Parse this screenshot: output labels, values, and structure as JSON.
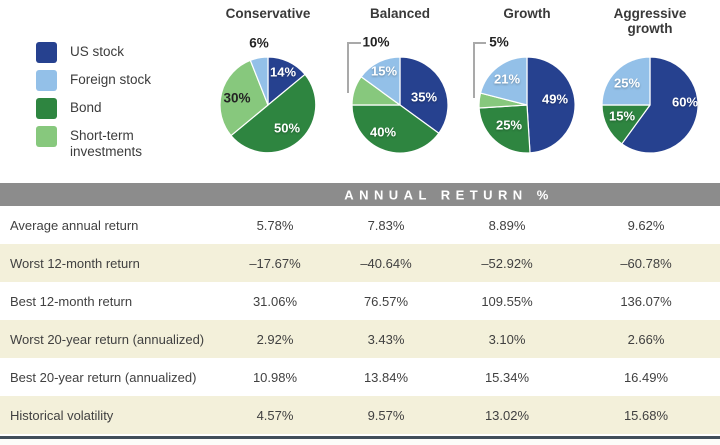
{
  "legend": {
    "items": [
      {
        "key": "us_stock",
        "label": "US stock"
      },
      {
        "key": "foreign_stock",
        "label": "Foreign stock"
      },
      {
        "key": "bond",
        "label": "Bond"
      },
      {
        "key": "short_term",
        "label": "Short-term investments"
      }
    ]
  },
  "colors": {
    "us_stock": "#26418f",
    "foreign_stock": "#93c0e8",
    "bond": "#2e8540",
    "short_term": "#87c87d",
    "header_bar": "#8c8c8c",
    "row_alt": "#f3f0da",
    "bottom_rule": "#414e5a"
  },
  "pies": [
    {
      "title": "Conservative",
      "slices": [
        {
          "key": "us_stock",
          "value": 14,
          "label": "14%"
        },
        {
          "key": "bond",
          "value": 50,
          "label": "50%"
        },
        {
          "key": "short_term",
          "value": 30,
          "label": "30%"
        },
        {
          "key": "foreign_stock",
          "value": 6,
          "label": "6%"
        }
      ]
    },
    {
      "title": "Balanced",
      "slices": [
        {
          "key": "us_stock",
          "value": 35,
          "label": "35%"
        },
        {
          "key": "bond",
          "value": 40,
          "label": "40%"
        },
        {
          "key": "short_term",
          "value": 10,
          "label": "10%"
        },
        {
          "key": "foreign_stock",
          "value": 15,
          "label": "15%"
        }
      ]
    },
    {
      "title": "Growth",
      "slices": [
        {
          "key": "us_stock",
          "value": 49,
          "label": "49%"
        },
        {
          "key": "bond",
          "value": 25,
          "label": "25%"
        },
        {
          "key": "short_term",
          "value": 5,
          "label": "5%"
        },
        {
          "key": "foreign_stock",
          "value": 21,
          "label": "21%"
        }
      ]
    },
    {
      "title": "Aggressive growth",
      "slices": [
        {
          "key": "us_stock",
          "value": 60,
          "label": "60%"
        },
        {
          "key": "bond",
          "value": 15,
          "label": "15%"
        },
        {
          "key": "foreign_stock",
          "value": 25,
          "label": "25%"
        }
      ]
    }
  ],
  "table": {
    "header": "ANNUAL RETURN %",
    "columns": [
      "Conservative",
      "Balanced",
      "Growth",
      "Aggressive growth"
    ],
    "rows": [
      {
        "label": "Average annual return",
        "values": [
          "5.78%",
          "7.83%",
          "8.89%",
          "9.62%"
        ]
      },
      {
        "label": "Worst 12-month return",
        "values": [
          "–17.67%",
          "–40.64%",
          "–52.92%",
          "–60.78%"
        ]
      },
      {
        "label": "Best 12-month return",
        "values": [
          "31.06%",
          "76.57%",
          "109.55%",
          "136.07%"
        ]
      },
      {
        "label": "Worst 20-year return (annualized)",
        "values": [
          "2.92%",
          "3.43%",
          "3.10%",
          "2.66%"
        ]
      },
      {
        "label": "Best 20-year return (annualized)",
        "values": [
          "10.98%",
          "13.84%",
          "15.34%",
          "16.49%"
        ]
      },
      {
        "label": "Historical volatility",
        "values": [
          "4.57%",
          "9.57%",
          "13.02%",
          "15.68%"
        ]
      }
    ]
  },
  "chart_data": [
    {
      "type": "pie",
      "title": "Conservative",
      "labels": [
        "US stock",
        "Bond",
        "Short-term investments",
        "Foreign stock"
      ],
      "values": [
        14,
        50,
        30,
        6
      ]
    },
    {
      "type": "pie",
      "title": "Balanced",
      "labels": [
        "US stock",
        "Bond",
        "Short-term investments",
        "Foreign stock"
      ],
      "values": [
        35,
        40,
        10,
        15
      ]
    },
    {
      "type": "pie",
      "title": "Growth",
      "labels": [
        "US stock",
        "Bond",
        "Short-term investments",
        "Foreign stock"
      ],
      "values": [
        49,
        25,
        5,
        21
      ]
    },
    {
      "type": "pie",
      "title": "Aggressive growth",
      "labels": [
        "US stock",
        "Bond",
        "Foreign stock"
      ],
      "values": [
        60,
        15,
        25
      ]
    },
    {
      "type": "table",
      "title": "ANNUAL RETURN %",
      "columns": [
        "Conservative",
        "Balanced",
        "Growth",
        "Aggressive growth"
      ],
      "rows": [
        {
          "label": "Average annual return",
          "values": [
            5.78,
            7.83,
            8.89,
            9.62
          ]
        },
        {
          "label": "Worst 12-month return",
          "values": [
            -17.67,
            -40.64,
            -52.92,
            -60.78
          ]
        },
        {
          "label": "Best 12-month return",
          "values": [
            31.06,
            76.57,
            109.55,
            136.07
          ]
        },
        {
          "label": "Worst 20-year return (annualized)",
          "values": [
            2.92,
            3.43,
            3.1,
            2.66
          ]
        },
        {
          "label": "Best 20-year return (annualized)",
          "values": [
            10.98,
            13.84,
            15.34,
            16.49
          ]
        },
        {
          "label": "Historical volatility",
          "values": [
            4.57,
            9.57,
            13.02,
            15.68
          ]
        }
      ]
    }
  ]
}
